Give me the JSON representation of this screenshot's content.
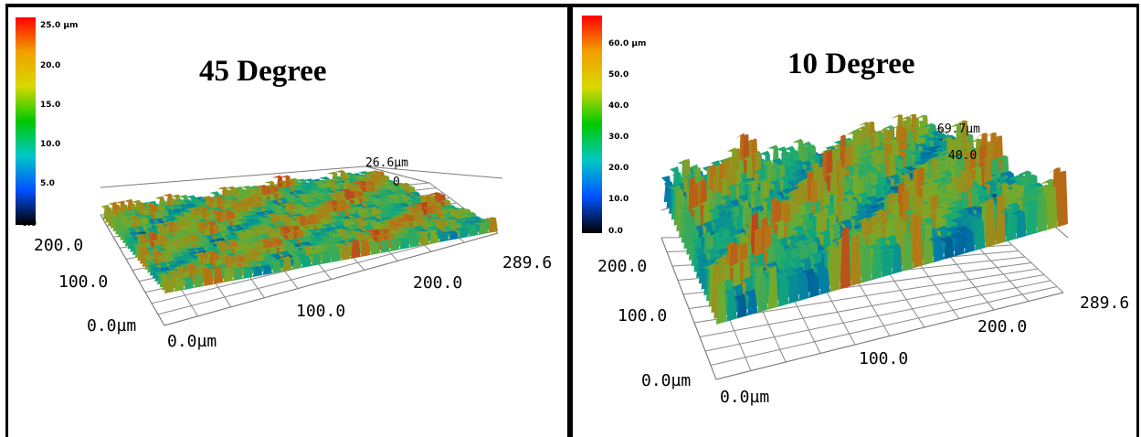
{
  "chart_data": [
    {
      "type": "surface-3d",
      "title": "45 Degree",
      "colorbar": {
        "ticks": [
          "25.0 µm",
          "20.0",
          "15.0",
          "10.0",
          "5.0",
          "0.0"
        ],
        "range": [
          0,
          25
        ],
        "colors": [
          "#ff0000",
          "#f2a000",
          "#d8d800",
          "#00c800",
          "#00c8c8",
          "#0050ff",
          "#000000"
        ]
      },
      "axes": {
        "x": {
          "ticks": [
            "0.0µm",
            "100.0",
            "200.0",
            "289.6"
          ],
          "range": [
            0,
            289.6
          ]
        },
        "y": {
          "ticks": [
            "0.0µm",
            "100.0",
            "200.0"
          ],
          "range": [
            0,
            200
          ]
        },
        "z": {
          "ticks": [
            "26.6µm",
            "0"
          ],
          "max": 26.6
        }
      },
      "grid": true
    },
    {
      "type": "surface-3d",
      "title": "10 Degree",
      "colorbar": {
        "ticks": [
          "60.0 µm",
          "50.0",
          "40.0",
          "30.0",
          "20.0",
          "10.0",
          "0.0"
        ],
        "range": [
          0,
          60
        ],
        "colors": [
          "#ff0000",
          "#f2a000",
          "#d8d800",
          "#00c800",
          "#00c8c8",
          "#0050ff",
          "#000000"
        ]
      },
      "axes": {
        "x": {
          "ticks": [
            "0.0µm",
            "100.0",
            "200.0",
            "289.6"
          ],
          "range": [
            0,
            289.6
          ]
        },
        "y": {
          "ticks": [
            "0.0µm",
            "100.0",
            "200.0"
          ],
          "range": [
            0,
            200
          ]
        },
        "z": {
          "ticks": [
            "69.7µm",
            "40.0"
          ],
          "max": 69.7
        }
      },
      "grid": true
    }
  ]
}
